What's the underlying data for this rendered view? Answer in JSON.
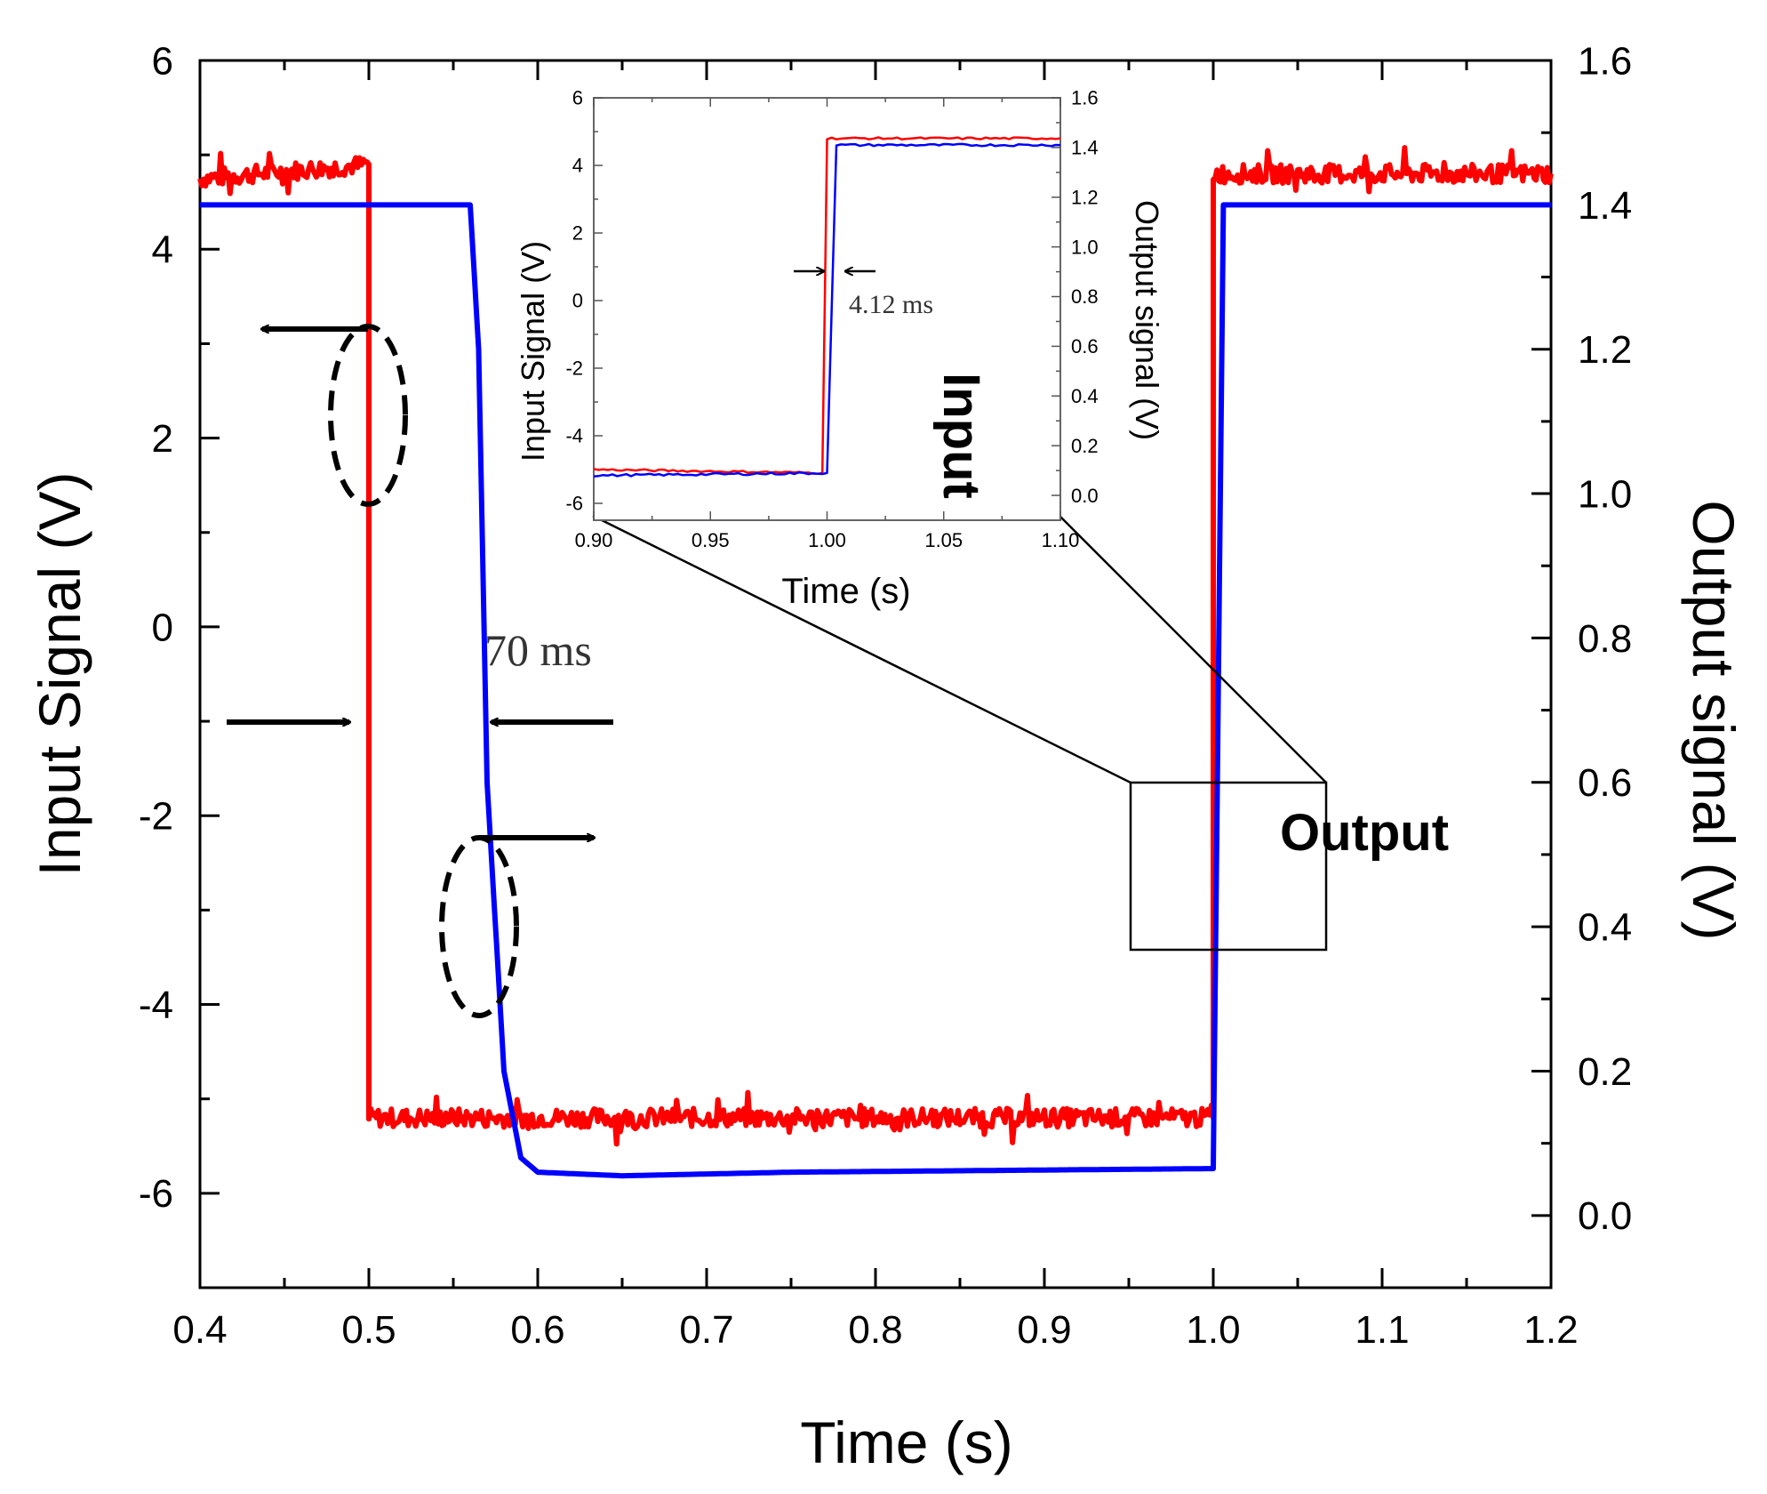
{
  "chart_data": [
    {
      "id": "main",
      "type": "line",
      "xlabel": "Time (s)",
      "ylabel_left": "Input Signal (V)",
      "ylabel_right": "Output signal (V)",
      "xlim": [
        0.4,
        1.2
      ],
      "ylim_left": [
        -7,
        6
      ],
      "ylim_right": [
        -0.1,
        1.6
      ],
      "xticks": [
        0.4,
        0.5,
        0.6,
        0.7,
        0.8,
        0.9,
        1.0,
        1.1,
        1.2
      ],
      "xtick_labels": [
        "0.4",
        "0.5",
        "0.6",
        "0.7",
        "0.8",
        "0.9",
        "1.0",
        "1.1",
        "1.2"
      ],
      "yticks_left": [
        -6,
        -4,
        -2,
        0,
        2,
        4,
        6
      ],
      "ytick_labels_left": [
        "-6",
        "-4",
        "-2",
        "0",
        "2",
        "4",
        "6"
      ],
      "yticks_right": [
        0.0,
        0.2,
        0.4,
        0.6,
        0.8,
        1.0,
        1.2,
        1.4,
        1.6
      ],
      "ytick_labels_right": [
        "0.0",
        "0.2",
        "0.4",
        "0.6",
        "0.8",
        "1.0",
        "1.2",
        "1.4",
        "1.6"
      ],
      "series": [
        {
          "name": "Input",
          "axis": "left",
          "color": "#ff0000",
          "high_level": 4.8,
          "low_level": -5.2,
          "noise_amplitude": 0.1,
          "points": [
            [
              0.4,
              4.75
            ],
            [
              0.5,
              4.9
            ],
            [
              0.5,
              -5.2
            ],
            [
              1.0,
              -5.2
            ],
            [
              1.0,
              4.8
            ],
            [
              1.2,
              4.8
            ]
          ]
        },
        {
          "name": "Output",
          "axis": "right",
          "color": "#0000ff",
          "high_level": 1.4,
          "low_level": 0.055,
          "points": [
            [
              0.4,
              1.4
            ],
            [
              0.56,
              1.4
            ],
            [
              0.565,
              1.2
            ],
            [
              0.57,
              0.6
            ],
            [
              0.58,
              0.2
            ],
            [
              0.59,
              0.08
            ],
            [
              0.6,
              0.06
            ],
            [
              0.65,
              0.055
            ],
            [
              0.75,
              0.06
            ],
            [
              1.0,
              0.065
            ],
            [
              1.0,
              0.065
            ],
            [
              1.006,
              1.4
            ],
            [
              1.2,
              1.4
            ]
          ]
        }
      ],
      "annotations": {
        "delay_label": "70 ms",
        "input_label": "Input",
        "output_label": "Output"
      }
    },
    {
      "id": "inset",
      "type": "line",
      "xlabel": "Time (s)",
      "ylabel_left": "Input Signal (V)",
      "ylabel_right": "Output signal (V)",
      "xlim": [
        0.9,
        1.1
      ],
      "ylim_left": [
        -6.5,
        6
      ],
      "ylim_right": [
        -0.1,
        1.6
      ],
      "xticks": [
        0.9,
        0.95,
        1.0,
        1.05,
        1.1
      ],
      "xtick_labels": [
        "0.90",
        "0.95",
        "1.00",
        "1.05",
        "1.10"
      ],
      "yticks_left": [
        -6,
        -4,
        -2,
        0,
        2,
        4,
        6
      ],
      "ytick_labels_left": [
        "-6",
        "-4",
        "-2",
        "0",
        "2",
        "4",
        "6"
      ],
      "yticks_right": [
        0.0,
        0.2,
        0.4,
        0.6,
        0.8,
        1.0,
        1.2,
        1.4,
        1.6
      ],
      "ytick_labels_right": [
        "0.0",
        "0.2",
        "0.4",
        "0.6",
        "0.8",
        "1.0",
        "1.2",
        "1.4",
        "1.6"
      ],
      "series": [
        {
          "name": "Input",
          "axis": "left",
          "color": "#ff0000",
          "points": [
            [
              0.9,
              -5.0
            ],
            [
              0.998,
              -5.1
            ],
            [
              1.0,
              4.8
            ],
            [
              1.1,
              4.8
            ]
          ]
        },
        {
          "name": "Output",
          "axis": "right",
          "color": "#0000ff",
          "points": [
            [
              0.9,
              0.08
            ],
            [
              1.0,
              0.09
            ],
            [
              1.004,
              1.41
            ],
            [
              1.1,
              1.41
            ]
          ]
        }
      ],
      "annotations": {
        "delay_label": "4.12 ms"
      }
    }
  ]
}
